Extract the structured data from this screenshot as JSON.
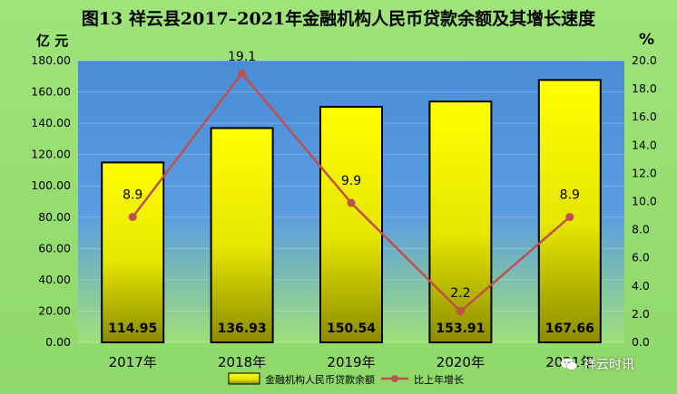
{
  "chart_data": {
    "type": "bar",
    "title": "图13  祥云县2017–2021年金融机构人民币贷款余额及其增长速度",
    "categories": [
      "2017年",
      "2018年",
      "2019年",
      "2020年",
      "2021年"
    ],
    "y_left_unit": "亿 元",
    "y_right_unit": "%",
    "y_left_range": [
      0,
      180
    ],
    "y_left_ticks": [
      "0.00",
      "20.00",
      "40.00",
      "60.00",
      "80.00",
      "100.00",
      "120.00",
      "140.00",
      "160.00",
      "180.00"
    ],
    "y_right_range": [
      0,
      20
    ],
    "y_right_ticks": [
      "0.0",
      "2.0",
      "4.0",
      "6.0",
      "8.0",
      "10.0",
      "12.0",
      "14.0",
      "16.0",
      "18.0",
      "20.0"
    ],
    "series": [
      {
        "name": "金融机构人民币贷款余额",
        "type": "bar",
        "axis": "left",
        "values": [
          114.95,
          136.93,
          150.54,
          153.91,
          167.66
        ],
        "labels": [
          "114.95",
          "136.93",
          "150.54",
          "153.91",
          "167.66"
        ]
      },
      {
        "name": "比上年增长",
        "type": "line",
        "axis": "right",
        "values": [
          8.9,
          19.1,
          9.9,
          2.2,
          8.9
        ],
        "labels": [
          "8.9",
          "19.1",
          "9.9",
          "2.2",
          "8.9"
        ]
      }
    ],
    "legend_position": "bottom",
    "colors": {
      "bar_top": "#ffff00",
      "bar_bottom": "#8b8b00",
      "line": "#c0504d",
      "plot_bg": "#4f8fd6",
      "frame_bg": "#9ee47a"
    }
  },
  "watermark": {
    "text": "祥云时讯",
    "icon": "wechat-icon"
  }
}
